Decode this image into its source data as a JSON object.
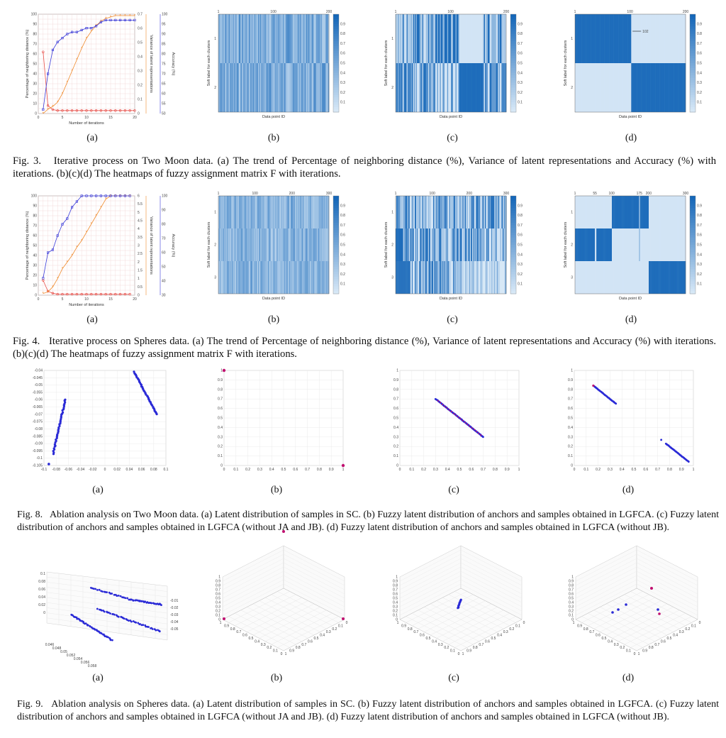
{
  "colors": {
    "red": "#e8504a",
    "orange": "#ef8a2c",
    "blue": "#3b3bd8",
    "heat_dark": "#1466b8",
    "heat_light": "#dcebf8",
    "point": "#2a2ad6",
    "point_alt": "#c01070"
  },
  "figures": [
    {
      "caption_label": "Fig. 3.",
      "caption_text": "Iterative process on Two Moon data. (a) The trend of Percentage of neighboring distance (%), Variance of latent representations and Accuracy (%) with iterations. (b)(c)(d) The heatmaps of fuzzy assignment matrix F with iterations.",
      "sublabels": [
        "(a)",
        "(b)",
        "(c)",
        "(d)"
      ]
    },
    {
      "caption_label": "Fig. 4.",
      "caption_text": "Iterative process on Spheres data. (a) The trend of Percentage of neighboring distance (%), Variance of latent representations and Accuracy (%) with iterations. (b)(c)(d) The heatmaps of fuzzy assignment matrix F with iterations.",
      "sublabels": [
        "(a)",
        "(b)",
        "(c)",
        "(d)"
      ]
    },
    {
      "caption_label": "Fig. 8.",
      "caption_text": "Ablation analysis on Two Moon data. (a) Latent distribution of samples in SC. (b) Fuzzy latent distribution of anchors and samples obtained in LGFCA. (c) Fuzzy latent distribution of anchors and samples obtained in LGFCA (without JA and JB). (d) Fuzzy latent distribution of anchors and samples obtained in LGFCA (without JB).",
      "sublabels": [
        "(a)",
        "(b)",
        "(c)",
        "(d)"
      ]
    },
    {
      "caption_label": "Fig. 9.",
      "caption_text": "Ablation analysis on Spheres data. (a) Latent distribution of samples in SC. (b) Fuzzy latent distribution of anchors and samples obtained in LGFCA. (c) Fuzzy latent distribution of anchors and samples obtained in LGFCA (without JA and JB). (d) Fuzzy latent distribution of anchors and samples obtained in LGFCA (without JB).",
      "sublabels": [
        "(a)",
        "(b)",
        "(c)",
        "(d)"
      ]
    }
  ],
  "chart_data": [
    {
      "type": "line",
      "xlabel": "Number of iterations",
      "ylabel_left": "Percentage of neighboring distance (%)",
      "ylabel_right1": "Variance of latent representations",
      "ylabel_right2": "Accuracy (%)",
      "xlim": [
        0,
        20
      ],
      "x_ticks": [
        "0",
        "5",
        "10",
        "15",
        "20"
      ],
      "left_ticks": [
        "0",
        "10",
        "20",
        "30",
        "40",
        "50",
        "60",
        "70",
        "80",
        "90",
        "100"
      ],
      "right1_ticks": [
        "0",
        "0.1",
        "0.2",
        "0.3",
        "0.4",
        "0.5",
        "0.6",
        "0.7"
      ],
      "right2_ticks": [
        "50",
        "55",
        "60",
        "65",
        "70",
        "75",
        "80",
        "85",
        "90",
        "95",
        "100"
      ],
      "x": [
        1,
        2,
        3,
        4,
        5,
        6,
        7,
        8,
        9,
        10,
        11,
        12,
        13,
        14,
        15,
        16,
        17,
        18,
        19,
        20
      ],
      "series": [
        {
          "axis": "left",
          "values": [
            62,
            8,
            4,
            3,
            3,
            3,
            3,
            3,
            3,
            3,
            3,
            3,
            3,
            3,
            3,
            3,
            3,
            3,
            3,
            3
          ]
        },
        {
          "axis": "right1",
          "values": [
            0,
            0.03,
            0.05,
            0.08,
            0.14,
            0.22,
            0.3,
            0.38,
            0.46,
            0.53,
            0.58,
            0.62,
            0.65,
            0.67,
            0.68,
            0.69,
            0.69,
            0.69,
            0.69,
            0.69
          ]
        },
        {
          "axis": "right2",
          "values": [
            52,
            70,
            82,
            86,
            88,
            90,
            91,
            91,
            92,
            93,
            93,
            94,
            96,
            97,
            97,
            97,
            97,
            97,
            97,
            97
          ]
        }
      ]
    },
    {
      "type": "line",
      "xlabel": "Number of iterations",
      "ylabel_left": "Percentage of neighboring distance (%)",
      "ylabel_right1": "Variance of latent representations",
      "ylabel_right2": "Accuracy (%)",
      "xlim": [
        0,
        20
      ],
      "x_ticks": [
        "0",
        "5",
        "10",
        "15",
        "20"
      ],
      "left_ticks": [
        "0",
        "10",
        "20",
        "30",
        "40",
        "50",
        "60",
        "70",
        "80",
        "90",
        "100"
      ],
      "right1_ticks": [
        "0",
        "0.5",
        "1",
        "1.5",
        "2",
        "2.5",
        "3",
        "3.5",
        "4",
        "4.5",
        "5",
        "5.5",
        "6"
      ],
      "right2_ticks": [
        "30",
        "40",
        "50",
        "60",
        "70",
        "80",
        "90",
        "100"
      ],
      "x": [
        1,
        2,
        3,
        4,
        5,
        6,
        7,
        8,
        9,
        10,
        11,
        12,
        13,
        14,
        15,
        16,
        17,
        18,
        19
      ],
      "series": [
        {
          "axis": "left",
          "values": [
            15,
            4,
            2,
            1,
            1,
            1,
            1,
            1,
            1,
            1,
            1,
            1,
            1,
            1,
            1,
            1,
            1,
            1,
            1
          ]
        },
        {
          "axis": "right1",
          "values": [
            0.1,
            0.2,
            0.5,
            1.0,
            1.6,
            2.0,
            2.4,
            2.9,
            3.3,
            3.8,
            4.3,
            4.8,
            5.3,
            5.8,
            6.0,
            6.0,
            6.0,
            6.0,
            6.0
          ]
        },
        {
          "axis": "right2",
          "values": [
            42,
            60,
            62,
            72,
            80,
            84,
            92,
            96,
            100,
            100,
            100,
            100,
            100,
            100,
            100,
            100,
            100,
            100,
            100
          ]
        }
      ]
    },
    {
      "type": "heatmap",
      "xlabel": "Data point ID",
      "ylabel": "Soft label for each clusters",
      "x_ticks": [
        "1",
        "100",
        "200"
      ],
      "y_ticks": [
        "1",
        "2"
      ],
      "colorbar": [
        "0.9",
        "0.8",
        "0.7",
        "0.6",
        "0.5",
        "0.4",
        "0.3",
        "0.2",
        "0.1"
      ]
    },
    {
      "type": "heatmap",
      "xlabel": "Data point ID",
      "ylabel": "Soft label for each clusters",
      "x_ticks": [
        "1",
        "100",
        "200"
      ],
      "y_ticks": [
        "1",
        "2"
      ],
      "colorbar": [
        "0.9",
        "0.8",
        "0.7",
        "0.6",
        "0.5",
        "0.4",
        "0.3",
        "0.2",
        "0.1"
      ]
    },
    {
      "type": "heatmap",
      "xlabel": "Data point ID",
      "ylabel": "Soft label for each clusters",
      "x_ticks": [
        "1",
        "100",
        "200"
      ],
      "y_ticks": [
        "1",
        "2"
      ],
      "annotation": "102",
      "colorbar": [
        "0.9",
        "0.8",
        "0.7",
        "0.6",
        "0.5",
        "0.4",
        "0.3",
        "0.2",
        "0.1"
      ]
    },
    {
      "type": "heatmap",
      "xlabel": "Data point ID",
      "ylabel": "Soft label for each clusters",
      "x_ticks": [
        "1",
        "100",
        "200",
        "300"
      ],
      "y_ticks": [
        "1",
        "2",
        "3"
      ],
      "colorbar": [
        "0.9",
        "0.8",
        "0.7",
        "0.6",
        "0.5",
        "0.4",
        "0.3",
        "0.2",
        "0.1"
      ]
    },
    {
      "type": "heatmap",
      "xlabel": "Data point ID",
      "ylabel": "Soft label for each clusters",
      "x_ticks": [
        "1",
        "100",
        "200",
        "300"
      ],
      "y_ticks": [
        "1",
        "2",
        "3"
      ],
      "colorbar": [
        "0.9",
        "0.8",
        "0.7",
        "0.6",
        "0.5",
        "0.4",
        "0.3",
        "0.2",
        "0.1"
      ]
    },
    {
      "type": "heatmap",
      "xlabel": "Data point ID",
      "ylabel": "Soft label for each clusters",
      "x_ticks": [
        "1",
        "55",
        "100",
        "175",
        "200",
        "300"
      ],
      "y_ticks": [
        "1",
        "2",
        "3"
      ],
      "colorbar": [
        "0.9",
        "0.8",
        "0.7",
        "0.6",
        "0.5",
        "0.4",
        "0.3",
        "0.2",
        "0.1"
      ]
    },
    {
      "type": "scatter",
      "x_ticks": [
        "-0.1",
        "-0.08",
        "-0.06",
        "-0.04",
        "-0.02",
        "0",
        "0.02",
        "0.04",
        "0.06",
        "0.08",
        "0.1"
      ],
      "y_ticks": [
        "-0.04",
        "-0.045",
        "-0.05",
        "-0.055",
        "-0.06",
        "-0.065",
        "-0.07",
        "-0.075",
        "-0.08",
        "-0.085",
        "-0.09",
        "-0.095",
        "-0.1",
        "-0.105"
      ]
    },
    {
      "type": "scatter",
      "x_ticks": [
        "0",
        "0.1",
        "0.2",
        "0.3",
        "0.4",
        "0.5",
        "0.6",
        "0.7",
        "0.8",
        "0.9",
        "1"
      ],
      "y_ticks": [
        "1",
        "0.9",
        "0.8",
        "0.7",
        "0.6",
        "0.5",
        "0.4",
        "0.3",
        "0.2",
        "0.1",
        "0"
      ]
    },
    {
      "type": "scatter",
      "x_ticks": [
        "0",
        "0.1",
        "0.2",
        "0.3",
        "0.4",
        "0.5",
        "0.6",
        "0.7",
        "0.8",
        "0.9",
        "1"
      ],
      "y_ticks": [
        "1",
        "0.9",
        "0.8",
        "0.7",
        "0.6",
        "0.5",
        "0.4",
        "0.3",
        "0.2",
        "0.1",
        "0"
      ]
    },
    {
      "type": "scatter",
      "x_ticks": [
        "0",
        "0.1",
        "0.2",
        "0.3",
        "0.4",
        "0.5",
        "0.6",
        "0.7",
        "0.8",
        "0.9",
        "1"
      ],
      "y_ticks": [
        "1",
        "0.9",
        "0.8",
        "0.7",
        "0.6",
        "0.5",
        "0.4",
        "0.3",
        "0.2",
        "0.1",
        "0"
      ]
    },
    {
      "type": "scatter",
      "x_ticks": [
        "0.046",
        "0.048",
        "0.05",
        "0.052",
        "0.054",
        "0.056",
        "0.058"
      ],
      "y_ticks": [
        "0.1",
        "0.08",
        "0.06",
        "0.04",
        "0.02",
        "0",
        "-0.02",
        "-0.04",
        "-0.06",
        "-0.08",
        "-0.1"
      ],
      "z_ticks": [
        "-0.05",
        "-0.04",
        "-0.03",
        "-0.02",
        "-0.01"
      ]
    },
    {
      "type": "scatter",
      "x_ticks": [
        "1",
        "0.9",
        "0.8",
        "0.7",
        "0.6",
        "0.5",
        "0.4",
        "0.3",
        "0.2",
        "0.1",
        "0"
      ],
      "y_ticks": [
        "1",
        "0.9",
        "0.8",
        "0.7",
        "0.6",
        "0.5",
        "0.4",
        "0.3",
        "0.2",
        "0.1",
        "0"
      ]
    },
    {
      "type": "scatter",
      "x_ticks": [
        "1",
        "0.9",
        "0.8",
        "0.7",
        "0.6",
        "0.5",
        "0.4",
        "0.3",
        "0.2",
        "0.1",
        "0"
      ],
      "y_ticks": [
        "1",
        "0.9",
        "0.8",
        "0.7",
        "0.6",
        "0.5",
        "0.4",
        "0.3",
        "0.2",
        "0.1",
        "0"
      ]
    },
    {
      "type": "scatter",
      "x_ticks": [
        "1",
        "0.9",
        "0.8",
        "0.7",
        "0.6",
        "0.5",
        "0.4",
        "0.3",
        "0.2",
        "0.1",
        "0"
      ],
      "y_ticks": [
        "1",
        "0.9",
        "0.8",
        "0.7",
        "0.6",
        "0.5",
        "0.4",
        "0.3",
        "0.2",
        "0.1",
        "0"
      ]
    }
  ]
}
